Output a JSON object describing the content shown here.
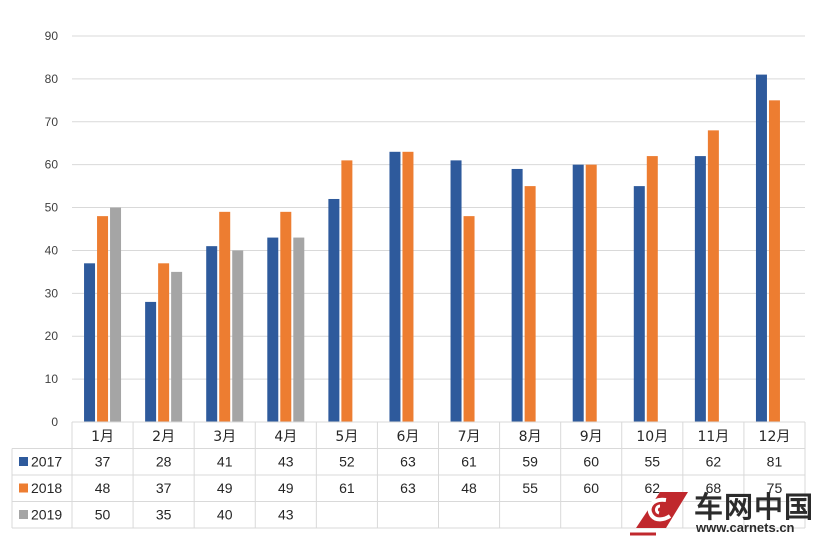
{
  "chart_data": {
    "type": "bar",
    "title": "",
    "xlabel": "",
    "ylabel": "",
    "ylim": [
      0,
      90
    ],
    "ytick_step": 10,
    "grid": true,
    "legend": "data-table-left",
    "categories": [
      "1月",
      "2月",
      "3月",
      "4月",
      "5月",
      "6月",
      "7月",
      "8月",
      "9月",
      "10月",
      "11月",
      "12月"
    ],
    "series": [
      {
        "name": "2017",
        "color": "#2e5a9c",
        "values": [
          37,
          28,
          41,
          43,
          52,
          63,
          61,
          59,
          60,
          55,
          62,
          81
        ]
      },
      {
        "name": "2018",
        "color": "#ed7d31",
        "values": [
          48,
          37,
          49,
          49,
          61,
          63,
          48,
          55,
          60,
          62,
          68,
          75
        ]
      },
      {
        "name": "2019",
        "color": "#a5a5a5",
        "values": [
          50,
          35,
          40,
          43,
          null,
          null,
          null,
          null,
          null,
          null,
          null,
          null
        ]
      }
    ]
  },
  "watermark": {
    "brand": "车网中国",
    "url": "www.carnets.cn"
  }
}
